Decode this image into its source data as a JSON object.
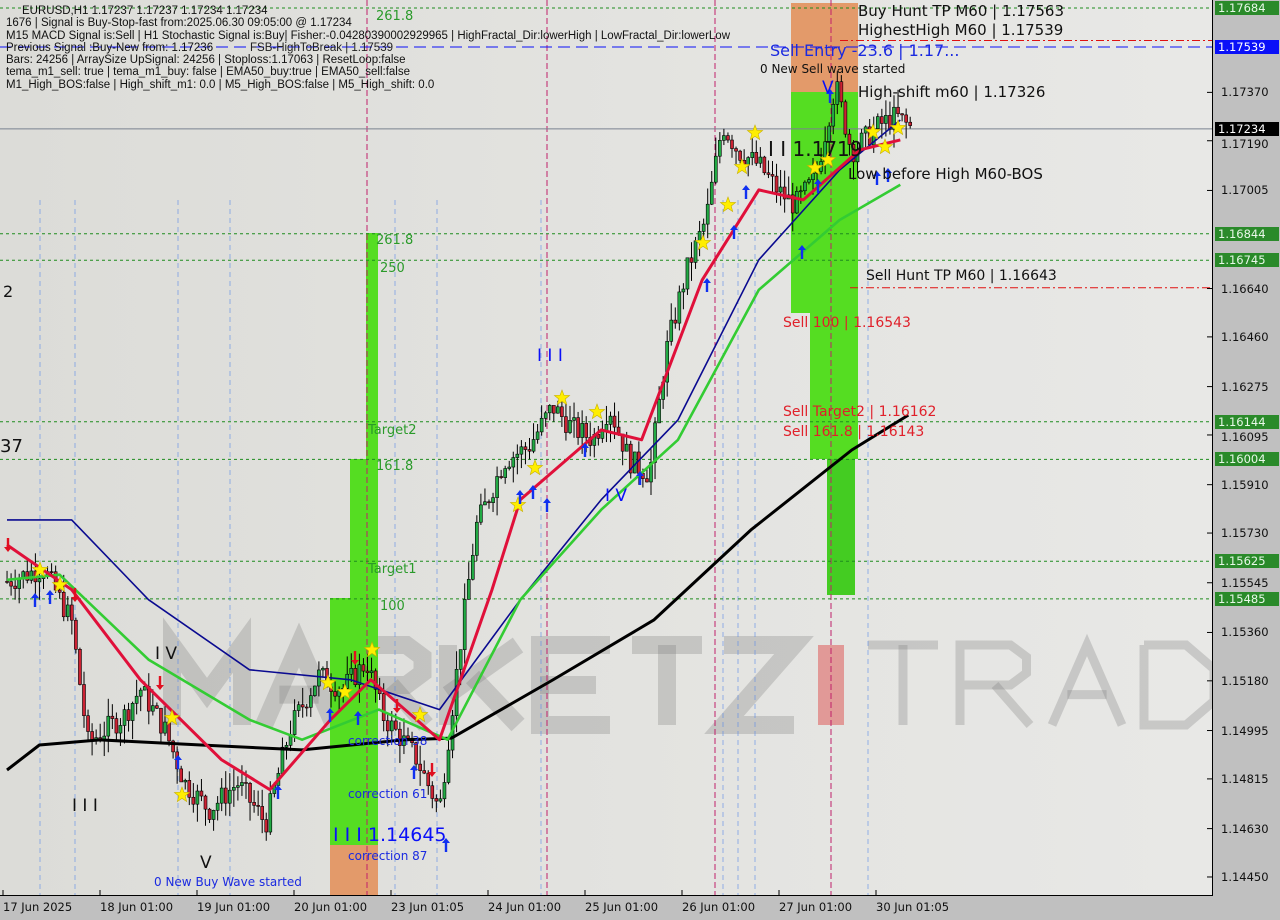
{
  "header": {
    "symbol_line": "EURUSD,H1  1.17237 1.17237 1.17234 1.17234",
    "info_lines": [
      "1676 | Signal is Buy-Stop-fast from:2025.06.30 09:05:00 @ 1.17234",
      "M15 MACD Signal is:Sell | H1 Stochastic Signal is:Buy| Fisher:-0.04280390002929965 | HighFractal_Dir:lowerHigh | LowFractal_Dir:lowerLow",
      "Previous Signal :Buy-New from: 1.17236",
      "Bars: 24256 | ArraySize UpSignal: 24256 | Stoploss:1.17063 | ResetLoop:false",
      "tema_m1_sell: true | tema_m1_buy: false | EMA50_buy:true | EMA50_sell:false",
      "M1_High_BOS:false | High_shift_m1: 0.0 | M5_High_BOS:false | M5_High_shift: 0.0"
    ],
    "fsb_label": "FSB-HighToBreak | 1.17539"
  },
  "watermark": {
    "part1": "MARKETZ",
    "part2": "I",
    "part3": "TRADE"
  },
  "annotations": {
    "fib_261_top": "261.8",
    "fib_261": "261.8",
    "fib_250": "250",
    "target2": "Target2",
    "fib_161": "161.8",
    "target1": "Target1",
    "fib_100": "100",
    "buy_wave_low": "I I I 1.14645",
    "correction_87": "correction 87",
    "correction_61": "correction 61",
    "correction_38": "correction 38",
    "new_buy_wave": "0 New Buy Wave started",
    "wave_v_low": "V",
    "wave_iv_left": "I V",
    "wave_iii_left": "I I I",
    "wave_iii_mid": "I I I",
    "wave_iv_mid": "I V",
    "wave_v_top": "V",
    "edge_2": "2",
    "edge_37": "37",
    "sell_entry": "Sell Entry -23.6 | 1.17...",
    "highest_high": "HighestHigh   M60 | 1.17539",
    "buy_hunt_tp": "Buy Hunt TP M60 | 1.17563",
    "new_sell_wave": "0 New Sell wave started",
    "high_shift": "High-shift m60 | 1.17326",
    "wave_ii_top": "I I 1.1719",
    "low_before_high": "Low before High   M60-BOS",
    "sell_hunt_tp": "Sell Hunt TP M60 | 1.16643",
    "sell_100": "Sell 100 | 1.16543",
    "sell_target2": "Sell Target2 | 1.16162",
    "sell_161": "Sell 161.8 | 1.16143"
  },
  "price_axis": {
    "ticks": [
      "1.17370",
      "1.17190",
      "1.17005",
      "1.16640",
      "1.16460",
      "1.16275",
      "1.16095",
      "1.15910",
      "1.15730",
      "1.15545",
      "1.15360",
      "1.15180",
      "1.14995",
      "1.14815",
      "1.14630",
      "1.14450"
    ],
    "highlighted": [
      {
        "value": "1.17684",
        "kind": "level"
      },
      {
        "value": "1.17539",
        "kind": "highest-high"
      },
      {
        "value": "1.17234",
        "kind": "current"
      },
      {
        "value": "1.16844",
        "kind": "level"
      },
      {
        "value": "1.16745",
        "kind": "level"
      },
      {
        "value": "1.16144",
        "kind": "level"
      },
      {
        "value": "1.16004",
        "kind": "level"
      },
      {
        "value": "1.15625",
        "kind": "level"
      },
      {
        "value": "1.15485",
        "kind": "level"
      }
    ]
  },
  "time_axis": {
    "ticks": [
      "17 Jun 2025",
      "18 Jun 01:00",
      "19 Jun 01:00",
      "20 Jun 01:00",
      "23 Jun 01:05",
      "24 Jun 01:00",
      "25 Jun 01:00",
      "26 Jun 01:00",
      "27 Jun 01:00",
      "30 Jun 01:05"
    ]
  },
  "colors": {
    "level_green": "#1e8c1e",
    "hunt_red": "#e01010",
    "highest_blue": "#0a10f8",
    "ema_black": "#000000",
    "ema_blue": "#0a0a90",
    "ema_green": "#33cc33",
    "ema_red": "#e0103a",
    "bull": "#22aa44",
    "bear": "#cc2233",
    "zone_green": "#55dd22",
    "zone_orange": "#e39a6a"
  },
  "chart_data": {
    "type": "candlestick",
    "symbol": "EURUSD",
    "timeframe": "H1",
    "ylim": [
      1.144,
      1.1772
    ],
    "days": [
      "17 Jun",
      "18 Jun",
      "19 Jun",
      "20 Jun",
      "23 Jun",
      "24 Jun",
      "25 Jun",
      "26 Jun",
      "27 Jun",
      "30 Jun"
    ],
    "close_path": [
      [
        "17 Jun 01:00",
        1.1555
      ],
      [
        "17 Jun 10:00",
        1.156
      ],
      [
        "17 Jun 17:00",
        1.154
      ],
      [
        "17 Jun 21:00",
        1.1495
      ],
      [
        "18 Jun 06:00",
        1.1505
      ],
      [
        "18 Jun 10:00",
        1.1515
      ],
      [
        "18 Jun 16:00",
        1.15
      ],
      [
        "18 Jun 21:00",
        1.148
      ],
      [
        "19 Jun 03:00",
        1.147
      ],
      [
        "19 Jun 10:00",
        1.148
      ],
      [
        "19 Jun 17:00",
        1.1465
      ],
      [
        "19 Jun 23:00",
        1.15
      ],
      [
        "20 Jun 06:00",
        1.152
      ],
      [
        "20 Jun 12:00",
        1.1515
      ],
      [
        "20 Jun 18:00",
        1.1525
      ],
      [
        "20 Jun 22:00",
        1.1505
      ],
      [
        "23 Jun 06:00",
        1.149
      ],
      [
        "23 Jun 12:00",
        1.147
      ],
      [
        "23 Jun 17:00",
        1.153
      ],
      [
        "23 Jun 21:00",
        1.1575
      ],
      [
        "24 Jun 04:00",
        1.16
      ],
      [
        "24 Jun 10:00",
        1.1605
      ],
      [
        "24 Jun 16:00",
        1.162
      ],
      [
        "24 Jun 21:00",
        1.1612
      ],
      [
        "25 Jun 02:00",
        1.1608
      ],
      [
        "25 Jun 06:00",
        1.162
      ],
      [
        "25 Jun 11:00",
        1.16
      ],
      [
        "25 Jun 16:00",
        1.1595
      ],
      [
        "25 Jun 20:00",
        1.164
      ],
      [
        "26 Jun 01:00",
        1.167
      ],
      [
        "26 Jun 06:00",
        1.169
      ],
      [
        "26 Jun 10:00",
        1.1725
      ],
      [
        "26 Jun 14:00",
        1.1715
      ],
      [
        "26 Jun 19:00",
        1.171
      ],
      [
        "27 Jun 00:00",
        1.17
      ],
      [
        "27 Jun 04:00",
        1.1695
      ],
      [
        "27 Jun 09:00",
        1.1705
      ],
      [
        "27 Jun 14:00",
        1.174
      ],
      [
        "27 Jun 18:00",
        1.1715
      ],
      [
        "30 Jun 01:00",
        1.1725
      ],
      [
        "30 Jun 05:00",
        1.1728
      ],
      [
        "30 Jun 09:00",
        1.17234
      ]
    ],
    "series": [
      {
        "color": "#000000",
        "points": [
          [
            "17 Jun 01:00",
            1.14848
          ],
          [
            "17 Jun 09:00",
            1.14941
          ],
          [
            "18 Jun 00:00",
            1.1496
          ],
          [
            "19 Jun 01:00",
            1.14941
          ],
          [
            "20 Jun 02:00",
            1.14923
          ],
          [
            "23 Jun 03:00",
            1.1496
          ],
          [
            "23 Jun 15:00",
            1.14967
          ],
          [
            "24 Jun 16:00",
            1.15183
          ],
          [
            "25 Jun 17:00",
            1.15406
          ],
          [
            "26 Jun 17:00",
            1.15741
          ],
          [
            "27 Jun 18:00",
            1.16039
          ],
          [
            "30 Jun 08:00",
            1.16169
          ]
        ]
      },
      {
        "color": "#0a0a90",
        "points": [
          [
            "17 Jun 01:00",
            1.15779
          ],
          [
            "17 Jun 17:00",
            1.15779
          ],
          [
            "18 Jun 12:00",
            1.15482
          ],
          [
            "19 Jun 13:00",
            1.15221
          ],
          [
            "20 Jun 14:00",
            1.15184
          ],
          [
            "23 Jun 12:00",
            1.15073
          ],
          [
            "24 Jun 08:00",
            1.15482
          ],
          [
            "25 Jun 04:00",
            1.15854
          ],
          [
            "25 Jun 23:00",
            1.16151
          ],
          [
            "26 Jun 19:00",
            1.16747
          ],
          [
            "27 Jun 15:00",
            1.17081
          ],
          [
            "30 Jun 06:00",
            1.17267
          ]
        ]
      },
      {
        "color": "#33cc33",
        "points": [
          [
            "17 Jun 01:00",
            1.15556
          ],
          [
            "17 Jun 14:00",
            1.15575
          ],
          [
            "18 Jun 12:00",
            1.15259
          ],
          [
            "19 Jun 13:00",
            1.15035
          ],
          [
            "20 Jun 02:00",
            1.14961
          ],
          [
            "20 Jun 21:00",
            1.15073
          ],
          [
            "23 Jun 14:00",
            1.14961
          ],
          [
            "24 Jun 08:00",
            1.15482
          ],
          [
            "25 Jun 04:00",
            1.15817
          ],
          [
            "25 Jun 23:00",
            1.16077
          ],
          [
            "26 Jun 19:00",
            1.16635
          ],
          [
            "27 Jun 15:00",
            1.16895
          ],
          [
            "30 Jun 06:00",
            1.17026
          ]
        ]
      },
      {
        "color": "#e0103a",
        "points": [
          [
            "17 Jun 01:00",
            1.15686
          ],
          [
            "17 Jun 17:00",
            1.15519
          ],
          [
            "18 Jun 10:00",
            1.15184
          ],
          [
            "19 Jun 06:00",
            1.14887
          ],
          [
            "19 Jun 18:00",
            1.14775
          ],
          [
            "20 Jun 09:00",
            1.15035
          ],
          [
            "20 Jun 19:00",
            1.15184
          ],
          [
            "23 Jun 12:00",
            1.14961
          ],
          [
            "24 Jun 01:00",
            1.15519
          ],
          [
            "24 Jun 08:00",
            1.15854
          ],
          [
            "25 Jun 04:00",
            1.16114
          ],
          [
            "25 Jun 14:00",
            1.16077
          ],
          [
            "26 Jun 05:00",
            1.16672
          ],
          [
            "26 Jun 19:00",
            1.17007
          ],
          [
            "27 Jun 06:00",
            1.1697
          ],
          [
            "27 Jun 20:00",
            1.17156
          ],
          [
            "30 Jun 06:00",
            1.17193
          ]
        ]
      }
    ],
    "levels": [
      {
        "price": 1.17684,
        "style": "green-dash"
      },
      {
        "price": 1.17563,
        "style": "red-dashdot"
      },
      {
        "price": 1.17539,
        "style": "blue-dash"
      },
      {
        "price": 1.17234,
        "style": "gray-solid"
      },
      {
        "price": 1.16844,
        "style": "green-dash"
      },
      {
        "price": 1.16745,
        "style": "green-dash"
      },
      {
        "price": 1.16643,
        "style": "red-dashdot"
      },
      {
        "price": 1.16144,
        "style": "green-dash"
      },
      {
        "price": 1.16004,
        "style": "green-dash"
      },
      {
        "price": 1.15625,
        "style": "green-dash"
      },
      {
        "price": 1.15485,
        "style": "green-dash"
      }
    ]
  }
}
